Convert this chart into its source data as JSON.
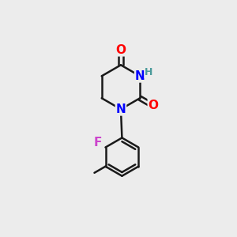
{
  "background_color": "#ececec",
  "bond_color": "#1a1a1a",
  "bond_width": 1.8,
  "atom_colors": {
    "O": "#ff0000",
    "N": "#0000ff",
    "H": "#4a9a9a",
    "F": "#cc44cc",
    "C": "#1a1a1a"
  },
  "font_size_atoms": 11,
  "font_size_H": 9,
  "font_size_small": 9
}
